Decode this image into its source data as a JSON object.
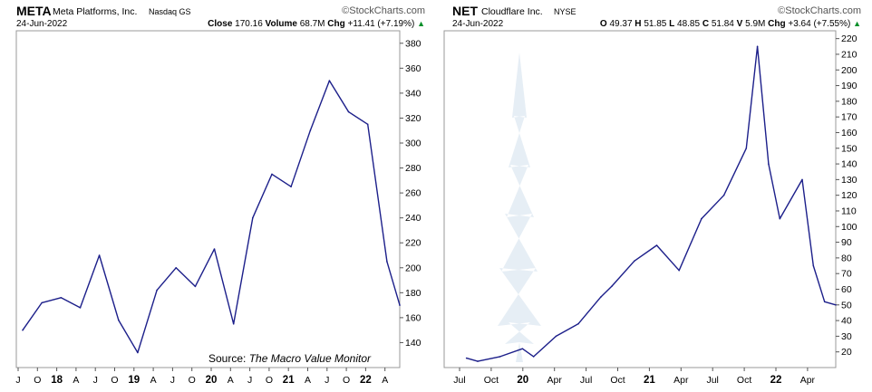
{
  "chart_data": [
    {
      "type": "line",
      "ticker": "META",
      "company": "Meta Platforms, Inc.",
      "exchange": "Nasdaq GS",
      "date": "24-Jun-2022",
      "brand": "StockCharts.com",
      "stats": {
        "close_label": "Close",
        "close": "170.16",
        "volume_label": "Volume",
        "volume": "68.7M",
        "chg_label": "Chg",
        "chg": "+11.41 (+7.19%)"
      },
      "source_prefix": "Source: ",
      "source_title": "The Macro Value Monitor",
      "x_ticks": [
        "J",
        "O",
        "18",
        "A",
        "J",
        "O",
        "19",
        "A",
        "J",
        "O",
        "20",
        "A",
        "J",
        "O",
        "21",
        "A",
        "J",
        "O",
        "22",
        "A"
      ],
      "y_ticks": [
        140,
        160,
        180,
        200,
        220,
        240,
        260,
        280,
        300,
        320,
        340,
        360,
        380
      ],
      "ylim": [
        120,
        390
      ],
      "x": [
        "2017-07",
        "2017-10",
        "2018-01",
        "2018-04",
        "2018-07",
        "2018-10",
        "2019-01",
        "2019-04",
        "2019-07",
        "2019-10",
        "2020-01",
        "2020-04",
        "2020-07",
        "2020-10",
        "2021-01",
        "2021-04",
        "2021-07",
        "2021-10",
        "2022-01",
        "2022-04",
        "2022-06"
      ],
      "values": [
        150,
        172,
        176,
        168,
        210,
        158,
        132,
        182,
        200,
        185,
        215,
        155,
        240,
        275,
        265,
        310,
        350,
        325,
        315,
        205,
        170
      ],
      "series_color": "#1c1f8a"
    },
    {
      "type": "line",
      "ticker": "NET",
      "company": "Cloudflare Inc.",
      "exchange": "NYSE",
      "date": "24-Jun-2022",
      "brand": "StockCharts.com",
      "stats": {
        "o_label": "O",
        "o": "49.37",
        "h_label": "H",
        "h": "51.85",
        "l_label": "L",
        "l": "48.85",
        "c_label": "C",
        "c": "51.84",
        "v_label": "V",
        "v": "5.9M",
        "chg_label": "Chg",
        "chg": "+3.64 (+7.55%)"
      },
      "x_ticks": [
        "Jul",
        "Oct",
        "20",
        "Apr",
        "Jul",
        "Oct",
        "21",
        "Apr",
        "Jul",
        "Oct",
        "22",
        "Apr"
      ],
      "y_ticks": [
        20,
        30,
        40,
        50,
        60,
        70,
        80,
        90,
        100,
        110,
        120,
        130,
        140,
        150,
        160,
        170,
        180,
        190,
        200,
        210,
        220
      ],
      "ylim": [
        10,
        225
      ],
      "x": [
        "2019-09",
        "2019-10",
        "2019-12",
        "2020-02",
        "2020-03",
        "2020-05",
        "2020-07",
        "2020-09",
        "2020-10",
        "2020-12",
        "2021-02",
        "2021-04",
        "2021-06",
        "2021-08",
        "2021-10",
        "2021-11",
        "2021-12",
        "2022-01",
        "2022-03",
        "2022-04",
        "2022-05",
        "2022-06"
      ],
      "values": [
        16,
        14,
        17,
        22,
        17,
        30,
        38,
        55,
        62,
        78,
        88,
        72,
        105,
        120,
        150,
        215,
        140,
        105,
        130,
        75,
        52,
        50
      ],
      "series_color": "#1c1f8a"
    }
  ]
}
